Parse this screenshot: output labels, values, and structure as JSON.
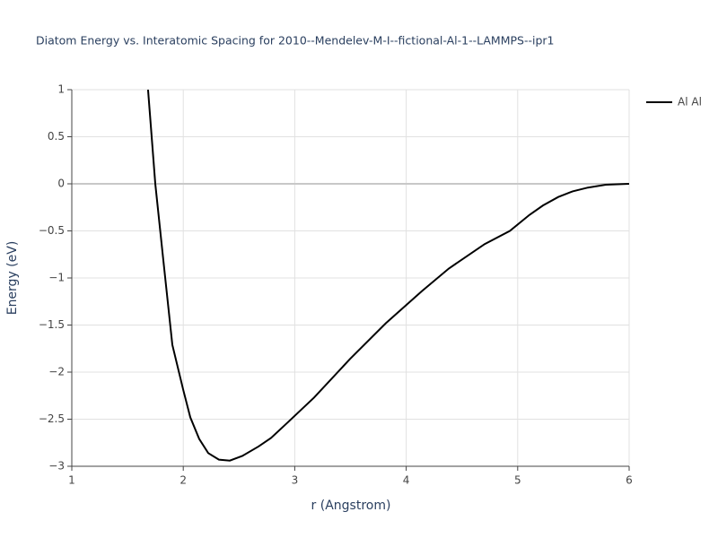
{
  "chart_data": {
    "type": "line",
    "title": "Diatom Energy vs. Interatomic Spacing for 2010--Mendelev-M-I--fictional-Al-1--LAMMPS--ipr1",
    "x_label": "r (Angstrom)",
    "y_label": "Energy (eV)",
    "x": [
      1.684,
      1.749,
      1.821,
      1.902,
      2.0,
      2.063,
      2.143,
      2.224,
      2.32,
      2.417,
      2.53,
      2.675,
      2.787,
      2.932,
      3.174,
      3.496,
      3.818,
      4.14,
      4.382,
      4.704,
      4.93,
      5.106,
      5.227,
      5.364,
      5.493,
      5.63,
      5.79,
      6.0
    ],
    "series": [
      {
        "name": "Al Al",
        "color": "#000000",
        "values": [
          1.0,
          0.0,
          -0.81,
          -1.71,
          -2.19,
          -2.48,
          -2.71,
          -2.86,
          -2.93,
          -2.94,
          -2.89,
          -2.79,
          -2.7,
          -2.54,
          -2.27,
          -1.86,
          -1.48,
          -1.14,
          -0.9,
          -0.64,
          -0.5,
          -0.33,
          -0.23,
          -0.14,
          -0.08,
          -0.04,
          -0.01,
          0.0
        ]
      }
    ],
    "xlim": [
      1,
      6
    ],
    "ylim": [
      -3,
      1
    ],
    "xticks": [
      1,
      2,
      3,
      4,
      5,
      6
    ],
    "yticks": [
      {
        "value": -3,
        "label": "−3"
      },
      {
        "value": -2.5,
        "label": "−2.5"
      },
      {
        "value": -2,
        "label": "−2"
      },
      {
        "value": -1.5,
        "label": "−1.5"
      },
      {
        "value": -1,
        "label": "−1"
      },
      {
        "value": -0.5,
        "label": "−0.5"
      },
      0,
      0.5,
      1
    ],
    "grid": true,
    "legend": "right"
  }
}
